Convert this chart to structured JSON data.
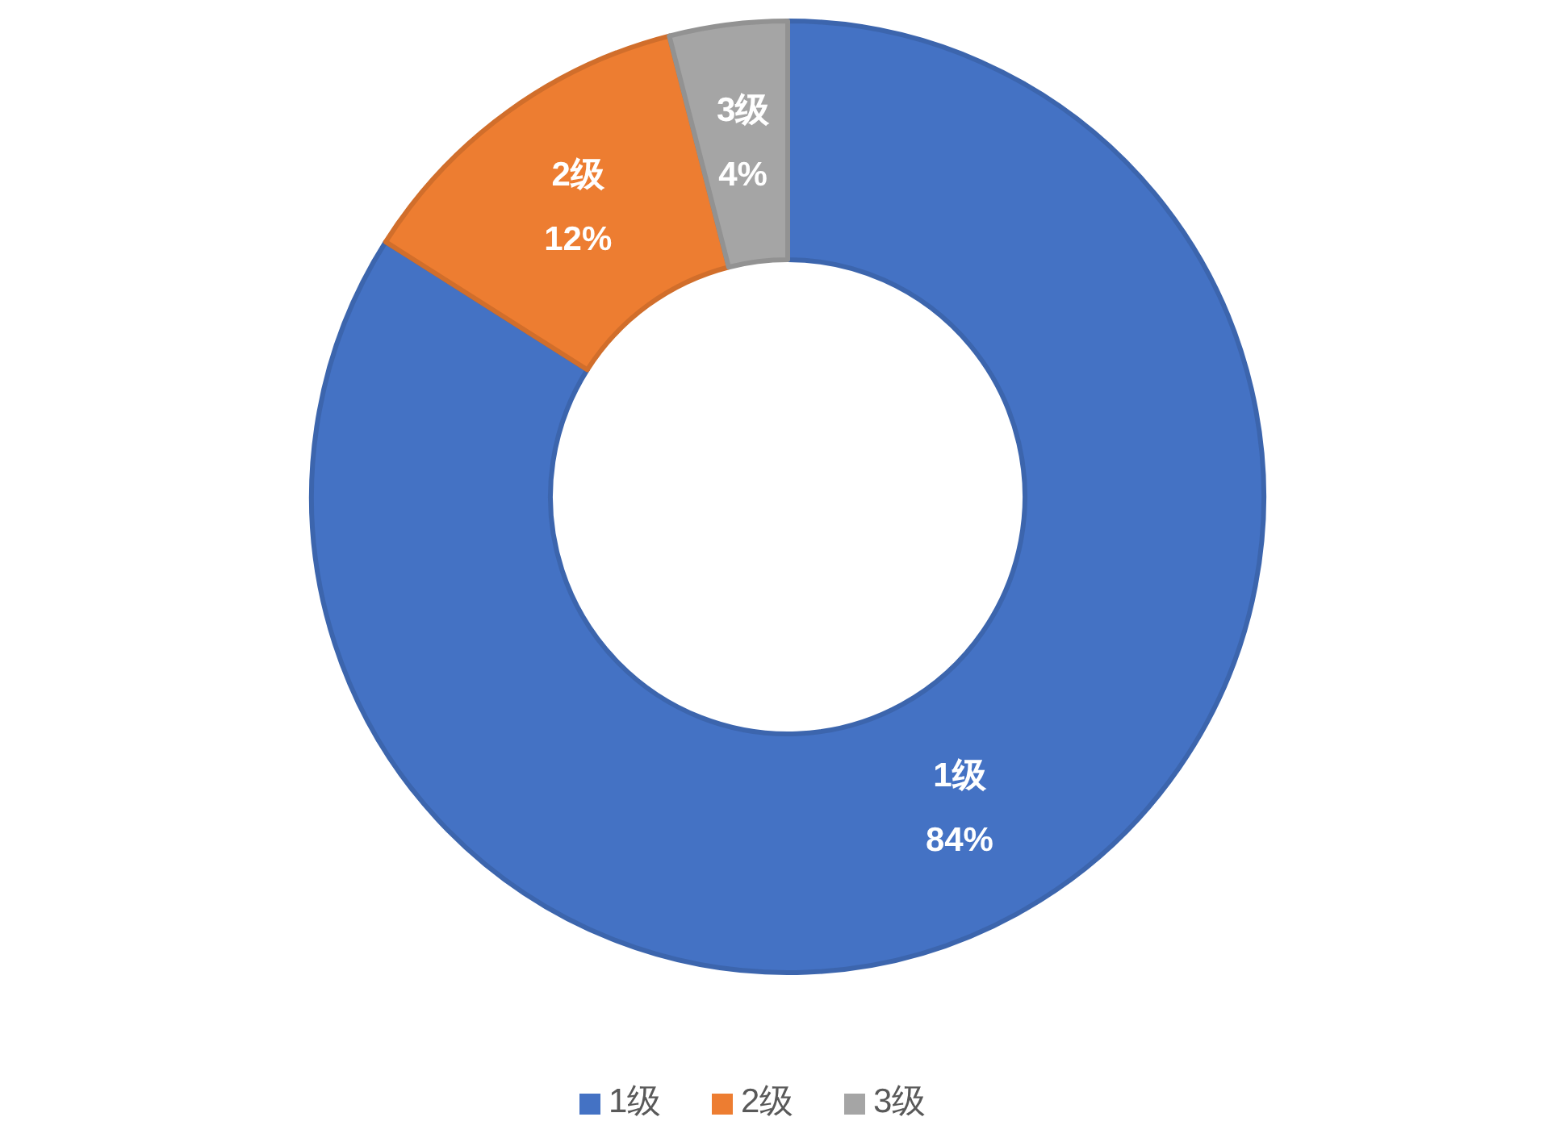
{
  "chart_data": {
    "type": "donut",
    "categories": [
      "1级",
      "2级",
      "3级"
    ],
    "values": [
      84,
      12,
      4
    ],
    "colors": [
      "#4472c4",
      "#ed7d31",
      "#a5a5a5"
    ],
    "value_labels": [
      "84%",
      "12%",
      "4%"
    ],
    "legend": "bottom"
  }
}
